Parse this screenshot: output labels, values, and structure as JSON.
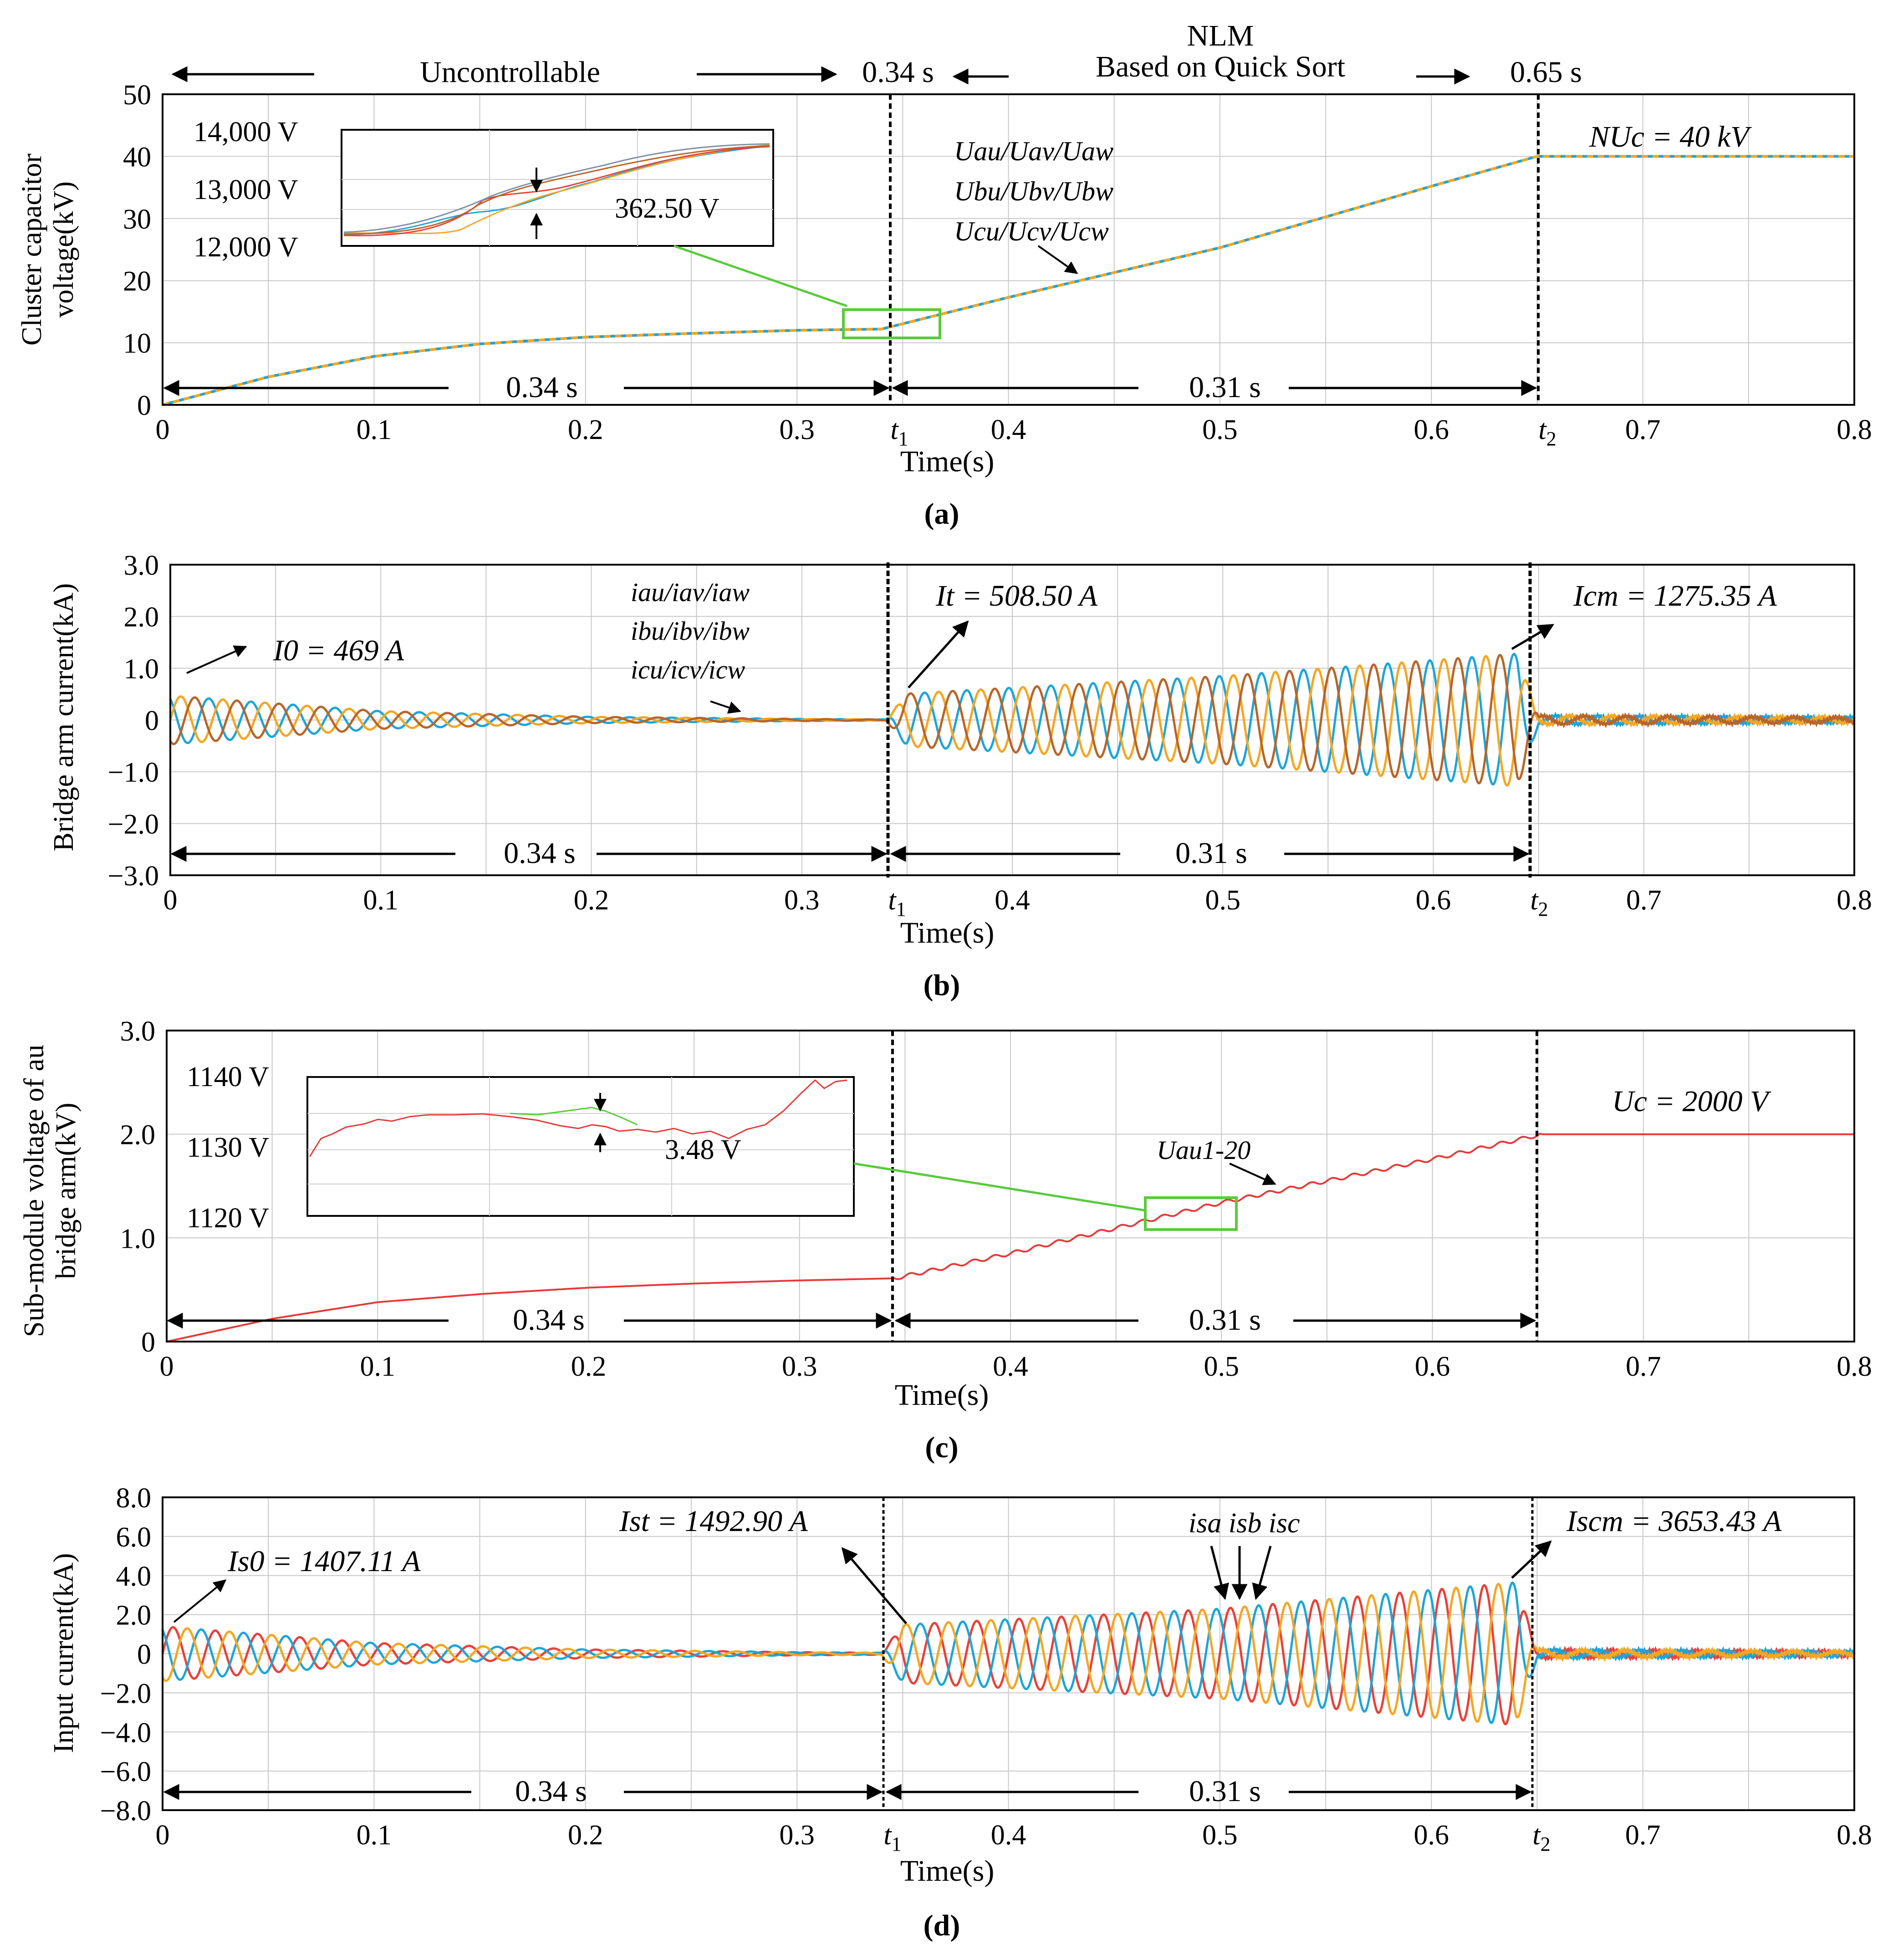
{
  "figure": {
    "header": {
      "uncontrollable": "Uncontrollable",
      "t1_time": "0.34 s",
      "nlm_title": "NLM",
      "nlm_subtitle": "Based on Quick Sort",
      "t2_time": "0.65 s"
    }
  },
  "colors": {
    "phase_orange": "#f5a623",
    "phase_blue": "#1da5d8",
    "phase_red": "#e8413a",
    "phase_brown": "#b8652a",
    "phase_gray": "#7f8fa6",
    "submodule_red": "#e63a3a",
    "inset_green": "#5aca3c",
    "grid": "#c8c8c8",
    "axis": "#000000"
  },
  "chart_data": [
    {
      "id": "a",
      "type": "line",
      "caption": "(a)",
      "xlabel": "Time(s)",
      "ylabel_lines": [
        "Cluster capacitor",
        "voltage(kV)"
      ],
      "xlim": [
        0,
        0.8
      ],
      "ylim": [
        0,
        50
      ],
      "xticks": [
        "0",
        "0.1",
        "0.2",
        "0.3",
        "t1",
        "0.4",
        "0.5",
        "0.6",
        "t2",
        "0.7",
        "0.8"
      ],
      "yticks": [
        "0",
        "10",
        "20",
        "30",
        "40",
        "50"
      ],
      "t1": 0.34,
      "t2": 0.65,
      "series": [
        {
          "name": "Uau/Uav/Uaw, Ubu/Ubv/Ubw, Ucu/Ucv/Ucw",
          "x": [
            0,
            0.05,
            0.1,
            0.15,
            0.2,
            0.25,
            0.3,
            0.34,
            0.4,
            0.5,
            0.6,
            0.65,
            0.8
          ],
          "values": [
            0,
            4.5,
            7.8,
            9.8,
            10.9,
            11.5,
            12.0,
            12.2,
            17.3,
            25.3,
            35.2,
            40,
            40
          ]
        }
      ],
      "annotations": {
        "series_label_lines": [
          "Uau/Uav/Uaw",
          "Ubu/Ubv/Ubw",
          "Ucu/Ucv/Ucw"
        ],
        "steady_label": "NUc = 40 kV",
        "interval_1": "0.34 s",
        "interval_2": "0.31 s"
      },
      "inset": {
        "ylabels": [
          "14,000 V",
          "13,000 V",
          "12,000 V"
        ],
        "difference": "362.50 V"
      }
    },
    {
      "id": "b",
      "type": "line",
      "caption": "(b)",
      "xlabel": "Time(s)",
      "ylabel_lines": [
        "Bridge arm current(kA)"
      ],
      "xlim": [
        0,
        0.8
      ],
      "ylim": [
        -3.0,
        3.0
      ],
      "xticks": [
        "0",
        "0.1",
        "0.2",
        "0.3",
        "t1",
        "0.4",
        "0.5",
        "0.6",
        "t2",
        "0.7",
        "0.8"
      ],
      "yticks": [
        "3.0",
        "2.0",
        "1.0",
        "0",
        "−1.0",
        "−2.0",
        "−3.0"
      ],
      "t1": 0.34,
      "t2": 0.65,
      "frequency_hz": 50,
      "series": [
        {
          "name": "iau/iav/iaw",
          "color_key": "phase_orange"
        },
        {
          "name": "ibu/ibv/ibw",
          "color_key": "phase_blue"
        },
        {
          "name": "icu/icv/icw",
          "color_key": "phase_brown"
        }
      ],
      "envelope": {
        "t": [
          0,
          0.1,
          0.2,
          0.3,
          0.34,
          0.35,
          0.5,
          0.64,
          0.65,
          0.8
        ],
        "amp_kA": [
          0.47,
          0.17,
          0.06,
          0.02,
          0.01,
          0.51,
          0.85,
          1.28,
          0.08,
          0.05
        ]
      },
      "annotations": {
        "series_label_lines": [
          "iau/iav/iaw",
          "ibu/ibv/ibw",
          "icu/icv/icw"
        ],
        "i0": "I0 = 469 A",
        "it": "It = 508.50 A",
        "icm": "Icm = 1275.35 A",
        "interval_1": "0.34 s",
        "interval_2": "0.31 s"
      }
    },
    {
      "id": "c",
      "type": "line",
      "caption": "(c)",
      "xlabel": "Time(s)",
      "ylabel_lines": [
        "Sub-module voltage of au",
        "bridge arm(kV)"
      ],
      "xlim": [
        0,
        0.8
      ],
      "ylim": [
        0,
        3.0
      ],
      "xticks": [
        "0",
        "0.1",
        "0.2",
        "0.3",
        "0.4",
        "0.5",
        "0.6",
        "0.7",
        "0.8"
      ],
      "yticks": [
        "0",
        "1.0",
        "2.0",
        "3.0"
      ],
      "t1": 0.345,
      "t2": 0.652,
      "series": [
        {
          "name": "Uau1-20",
          "x": [
            0,
            0.05,
            0.1,
            0.15,
            0.2,
            0.25,
            0.3,
            0.345,
            0.4,
            0.5,
            0.6,
            0.652,
            0.8
          ],
          "values": [
            0,
            0.22,
            0.38,
            0.46,
            0.52,
            0.56,
            0.59,
            0.61,
            0.85,
            1.34,
            1.76,
            2.0,
            2.0
          ]
        }
      ],
      "annotations": {
        "series_label": "Uau1-20",
        "steady_label": "Uc = 2000 V",
        "interval_1": "0.34 s",
        "interval_2": "0.31 s"
      },
      "inset": {
        "ylabels": [
          "1140 V",
          "1130 V",
          "1120 V"
        ],
        "difference": "3.48 V"
      }
    },
    {
      "id": "d",
      "type": "line",
      "caption": "(d)",
      "xlabel": "Time(s)",
      "ylabel_lines": [
        "Input  current(kA)"
      ],
      "xlim": [
        0,
        0.8
      ],
      "ylim": [
        -8.0,
        8.0
      ],
      "xticks": [
        "0",
        "0.1",
        "0.2",
        "0.3",
        "t1",
        "0.4",
        "0.5",
        "0.6",
        "t2",
        "0.7",
        "0.8"
      ],
      "yticks": [
        "8.0",
        "6.0",
        "4.0",
        "2.0",
        "0",
        "−2.0",
        "−4.0",
        "−6.0",
        "−8.0"
      ],
      "t1": 0.34,
      "t2": 0.65,
      "frequency_hz": 50,
      "series": [
        {
          "name": "isa",
          "color_key": "phase_red"
        },
        {
          "name": "isb",
          "color_key": "phase_blue"
        },
        {
          "name": "isc",
          "color_key": "phase_orange"
        }
      ],
      "envelope": {
        "t": [
          0,
          0.1,
          0.2,
          0.3,
          0.34,
          0.35,
          0.5,
          0.64,
          0.65,
          0.8
        ],
        "amp_kA": [
          1.4,
          0.55,
          0.22,
          0.08,
          0.05,
          1.49,
          2.3,
          3.65,
          0.2,
          0.1
        ]
      },
      "annotations": {
        "series_label": "isa isb isc",
        "is0": "Is0 = 1407.11 A",
        "ist": "Ist = 1492.90 A",
        "iscm": "Iscm = 3653.43 A",
        "interval_1": "0.34 s",
        "interval_2": "0.31 s"
      }
    }
  ]
}
